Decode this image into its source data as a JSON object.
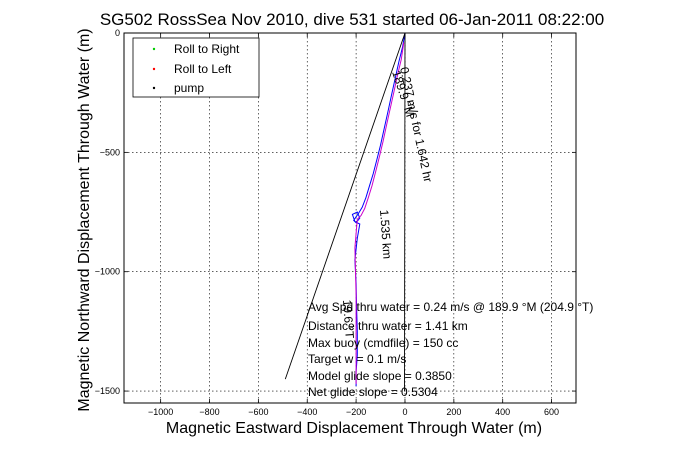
{
  "chart_data": {
    "type": "line",
    "title": "SG502 RossSea Nov 2010, dive 531 started 06-Jan-2011 08:22:00",
    "xlabel": "Magnetic Eastward Displacement Through Water (m)",
    "ylabel": "Magnetic Northward Displacement Through Water (m)",
    "xlim": [
      -1150,
      700
    ],
    "ylim": [
      -1550,
      0
    ],
    "xticks": [
      -1000,
      -800,
      -600,
      -400,
      -200,
      0,
      200,
      400,
      600
    ],
    "yticks": [
      0,
      -500,
      -1000,
      -1500
    ],
    "grid": true,
    "legend_position": "top-left",
    "legend": [
      {
        "label": "Roll to Right",
        "color": "#00cc00",
        "marker": "dot"
      },
      {
        "label": "Roll to Left",
        "color": "#ff0000",
        "marker": "dot"
      },
      {
        "label": "pump",
        "color": "#000000",
        "marker": "dot"
      }
    ],
    "series": [
      {
        "color": "#0000ff",
        "x": [
          0,
          -10,
          -25,
          -40,
          -55,
          -70,
          -85,
          -100,
          -115,
          -130,
          -145,
          -160,
          -175,
          -190,
          -200,
          -210,
          -200,
          -185,
          -195,
          -215,
          -205,
          -185,
          -195,
          -205,
          -200,
          -198,
          -195,
          -195,
          -200,
          -200
        ],
        "y": [
          0,
          -60,
          -120,
          -190,
          -260,
          -330,
          -400,
          -470,
          -530,
          -590,
          -640,
          -690,
          -730,
          -755,
          -770,
          -785,
          -795,
          -775,
          -750,
          -760,
          -790,
          -800,
          -860,
          -950,
          -1050,
          -1150,
          -1250,
          -1350,
          -1420,
          -1480
        ]
      },
      {
        "color": "#cc00cc",
        "x": [
          -5,
          -15,
          -30,
          -45,
          -60,
          -75,
          -90,
          -105,
          -120,
          -135,
          -150,
          -165,
          -180,
          -195,
          -205,
          -200,
          -200,
          -200
        ],
        "y": [
          -40,
          -110,
          -175,
          -245,
          -315,
          -385,
          -455,
          -520,
          -580,
          -640,
          -690,
          -735,
          -765,
          -780,
          -900,
          -1100,
          -1300,
          -1470
        ]
      },
      {
        "color": "#000000",
        "x": [
          0,
          -490
        ],
        "y": [
          0,
          -1450
        ]
      },
      {
        "color": "#000000",
        "x": [
          0,
          -2
        ],
        "y": [
          0,
          -1500
        ]
      }
    ],
    "annotations": {
      "avg_speed": "Avg Spd thru water =  0.24 m/s @ 189.9    °M (204.9 °T)",
      "distance": "Distance thru water =  1.41 km",
      "max_buoy": "Max buoy (cmdfile) = 150 cc",
      "target_w": "Target w = 0.1 m/s",
      "model_glide": "Model glide slope = 0.3850",
      "net_glide": "Net glide slope = 0.5304",
      "track_label_1": "1.535 km",
      "track_label_2": "0.237 m/s for 1.642 hr",
      "track_label_3": "189.9 °M",
      "track_label_4": "19.6 °T"
    }
  }
}
